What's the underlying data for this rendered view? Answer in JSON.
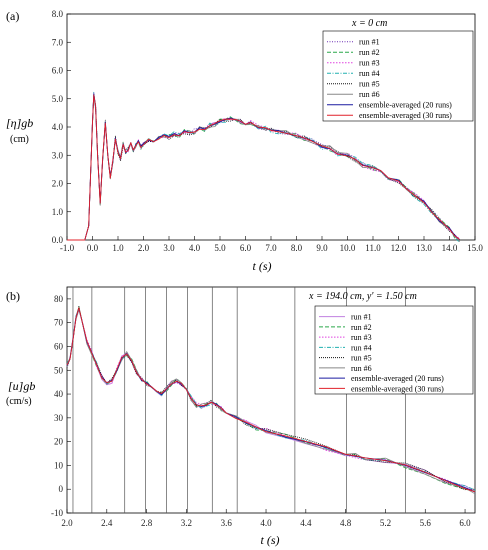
{
  "chart_data": [
    {
      "panel_label": "(a)",
      "type": "line",
      "annotation": "x = 0 cm",
      "xlabel": "t (s)",
      "ylabel": "[η]gb",
      "ylabel_unit": "(cm)",
      "xlim": [
        -1.0,
        15.0
      ],
      "ylim": [
        0.0,
        8.0
      ],
      "xticks": [
        "-1.0",
        "0.0",
        "1.0",
        "2.0",
        "3.0",
        "4.0",
        "5.0",
        "6.0",
        "7.0",
        "8.0",
        "9.0",
        "10.0",
        "11.0",
        "12.0",
        "13.0",
        "14.0",
        "15.0"
      ],
      "yticks": [
        "0.0",
        "1.0",
        "2.0",
        "3.0",
        "4.0",
        "5.0",
        "6.0",
        "7.0",
        "8.0"
      ],
      "grid": false,
      "legend_placement": "top-right",
      "series": [
        {
          "name": "run #1",
          "color": "#6b2fb3",
          "dash": "1,1.5"
        },
        {
          "name": "run #2",
          "color": "#2aa84a",
          "dash": "4,2"
        },
        {
          "name": "run #3",
          "color": "#e040e0",
          "dash": "1.5,1.5"
        },
        {
          "name": "run #4",
          "color": "#20b0b0",
          "dash": "4,1.5,1,1.5"
        },
        {
          "name": "run #5",
          "color": "#111111",
          "dash": "1,1"
        },
        {
          "name": "run #6",
          "color": "#888888",
          "dash": ""
        },
        {
          "name": "ensemble-averaged (20 runs)",
          "color": "#1a1aa0",
          "dash": ""
        },
        {
          "name": "ensemble-averaged (30 runs)",
          "color": "#e0202a",
          "dash": ""
        }
      ],
      "curve": {
        "x": [
          -1.0,
          -0.3,
          -0.15,
          0.0,
          0.05,
          0.12,
          0.2,
          0.3,
          0.4,
          0.5,
          0.6,
          0.7,
          0.8,
          0.9,
          1.0,
          1.1,
          1.2,
          1.3,
          1.4,
          1.5,
          1.6,
          1.7,
          1.8,
          1.9,
          2.0,
          2.2,
          2.4,
          2.6,
          2.8,
          3.0,
          3.2,
          3.4,
          3.6,
          3.8,
          4.0,
          4.2,
          4.4,
          4.6,
          4.8,
          5.0,
          5.2,
          5.4,
          5.6,
          5.8,
          6.0,
          6.2,
          6.5,
          6.8,
          7.0,
          7.3,
          7.6,
          8.0,
          8.3,
          8.6,
          9.0,
          9.3,
          9.6,
          10.0,
          10.3,
          10.6,
          11.0,
          11.3,
          11.6,
          12.0,
          12.3,
          12.6,
          13.0,
          13.3,
          13.6,
          14.0,
          14.2,
          14.4
        ],
        "y": [
          0.0,
          0.0,
          0.5,
          4.2,
          5.15,
          4.7,
          3.0,
          1.3,
          2.9,
          4.15,
          3.0,
          2.2,
          2.8,
          3.6,
          3.1,
          2.9,
          3.4,
          3.1,
          3.2,
          3.45,
          3.2,
          3.35,
          3.5,
          3.3,
          3.4,
          3.55,
          3.5,
          3.6,
          3.7,
          3.65,
          3.75,
          3.7,
          3.85,
          3.8,
          3.85,
          3.95,
          3.9,
          4.05,
          4.1,
          4.2,
          4.25,
          4.3,
          4.25,
          4.2,
          4.1,
          4.15,
          4.0,
          3.95,
          3.9,
          3.85,
          3.8,
          3.7,
          3.6,
          3.5,
          3.3,
          3.25,
          3.05,
          3.0,
          2.85,
          2.65,
          2.55,
          2.45,
          2.2,
          2.1,
          1.85,
          1.6,
          1.35,
          1.0,
          0.7,
          0.4,
          0.15,
          0.0
        ]
      }
    },
    {
      "panel_label": "(b)",
      "type": "line",
      "annotation": "x = 194.0 cm, y' = 1.50 cm",
      "xlabel": "t (s)",
      "ylabel": "[u]gb",
      "ylabel_unit": "(cm/s)",
      "xlim": [
        2.0,
        6.1
      ],
      "ylim": [
        -10,
        85
      ],
      "xticks": [
        "2.0",
        "2.4",
        "2.8",
        "3.2",
        "3.6",
        "4.0",
        "4.4",
        "4.8",
        "5.2",
        "5.6",
        "6.0"
      ],
      "yticks": [
        "-10",
        "0",
        "10",
        "20",
        "30",
        "40",
        "50",
        "60",
        "70",
        "80"
      ],
      "vertical_markers": [
        2.06,
        2.25,
        2.58,
        2.79,
        3.0,
        3.21,
        3.46,
        3.71,
        4.29,
        4.81,
        5.4
      ],
      "grid": false,
      "legend_placement": "top-right",
      "series": [
        {
          "name": "run #1",
          "color": "#c080e0",
          "dash": ""
        },
        {
          "name": "run #2",
          "color": "#2aa84a",
          "dash": "4,2"
        },
        {
          "name": "run #3",
          "color": "#e040e0",
          "dash": "1.5,1.5"
        },
        {
          "name": "run #4",
          "color": "#20b0b0",
          "dash": "4,1.5,1,1.5"
        },
        {
          "name": "run #5",
          "color": "#111111",
          "dash": "1,1"
        },
        {
          "name": "run #6",
          "color": "#888888",
          "dash": ""
        },
        {
          "name": "ensemble-averaged (20 runs)",
          "color": "#1a1aa0",
          "dash": ""
        },
        {
          "name": "ensemble-averaged (30 runs)",
          "color": "#e0202a",
          "dash": ""
        }
      ],
      "curve": {
        "x": [
          2.0,
          2.03,
          2.06,
          2.09,
          2.12,
          2.15,
          2.2,
          2.25,
          2.3,
          2.35,
          2.4,
          2.45,
          2.5,
          2.55,
          2.6,
          2.65,
          2.7,
          2.75,
          2.8,
          2.85,
          2.9,
          2.95,
          3.0,
          3.05,
          3.1,
          3.15,
          3.2,
          3.25,
          3.3,
          3.35,
          3.4,
          3.45,
          3.5,
          3.55,
          3.6,
          3.7,
          3.8,
          3.9,
          4.0,
          4.2,
          4.4,
          4.6,
          4.8,
          4.9,
          5.0,
          5.2,
          5.4,
          5.6,
          5.8,
          6.0,
          6.1
        ],
        "y": [
          52,
          55,
          63,
          72,
          76,
          71,
          62,
          57,
          52,
          47,
          44.5,
          45.5,
          50,
          55,
          57,
          54,
          49,
          46,
          44.5,
          43,
          41,
          40,
          42,
          44.5,
          45.5,
          44.5,
          42,
          38,
          35.5,
          35,
          35.5,
          36.5,
          35.5,
          34,
          32,
          30,
          28,
          26,
          24.5,
          22,
          20,
          17.5,
          14.5,
          14,
          13.5,
          12,
          10,
          7,
          3.5,
          0.5,
          -1
        ]
      }
    }
  ]
}
